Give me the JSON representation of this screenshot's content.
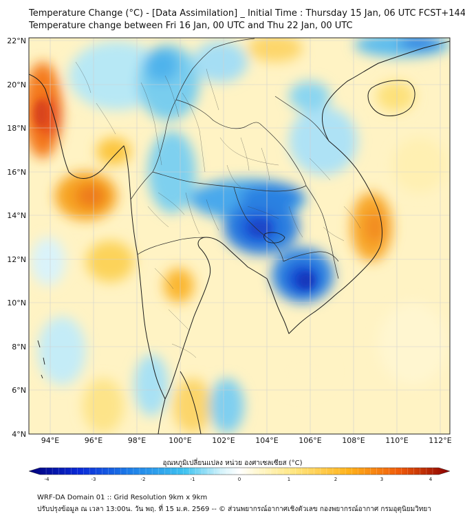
{
  "header": {
    "title_line1": "Temperature Change (°C) - [Data Assimilation] _ Initial Time : Thursday 15 Jan, 06 UTC FCST+144",
    "title_line2": "Temperature change between Fri 16 Jan, 00 UTC and Thu 22 Jan, 00 UTC"
  },
  "map": {
    "lat_ticks": [
      "22°N",
      "20°N",
      "18°N",
      "16°N",
      "14°N",
      "12°N",
      "10°N",
      "8°N",
      "6°N",
      "4°N"
    ],
    "lon_ticks": [
      "94°E",
      "96°E",
      "98°E",
      "100°E",
      "102°E",
      "104°E",
      "106°E",
      "108°E",
      "110°E",
      "112°E"
    ],
    "lat_range": [
      4,
      22
    ],
    "lon_range": [
      93,
      112.5
    ],
    "field": "temperature change (°C)",
    "warm_areas": [
      "Western Myanmar coast",
      "Central Myanmar",
      "Southern Vietnam coast",
      "Hainan",
      "Gulf of Thailand west"
    ],
    "cool_areas": [
      "Northern Laos / Thailand",
      "Cambodia / Tonle Sap",
      "Mekong Delta",
      "Andaman Sea south",
      "Gulf of Tonkin north"
    ]
  },
  "colorbar": {
    "label": "อุณหภูมิเปลี่ยนแปลง หน่วย องศาเซลเซียส (°C)",
    "ticks": [
      "-4",
      "-3",
      "-2",
      "-1",
      "0",
      "1",
      "2",
      "3",
      "4"
    ],
    "range": [
      -4,
      4
    ],
    "colors": [
      "#00007a",
      "#0a2ad8",
      "#1d7ee8",
      "#3fc3f0",
      "#ffffff",
      "#ffe680",
      "#ffb21a",
      "#f05a0a",
      "#8a0000"
    ]
  },
  "footer": {
    "line1": "WRF-DA Domain 01 :: Grid Resolution 9km x 9km",
    "line2": "ปรับปรุงข้อมูล ณ เวลา 13:00น. วัน พฤ. ที่ 15 ม.ค. 2569 -- © ส่วนพยากรณ์อากาศเชิงตัวเลข กองพยากรณ์อากาศ กรมอุตุนิยมวิทยา"
  }
}
